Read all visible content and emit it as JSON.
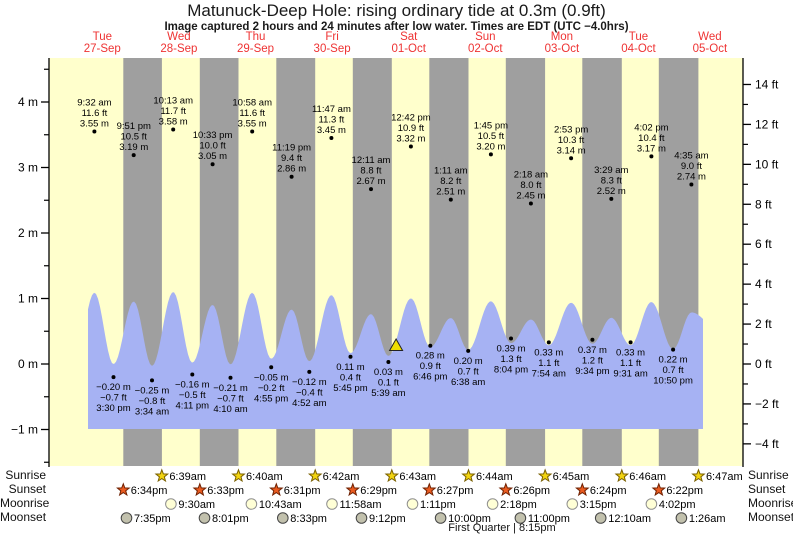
{
  "title": "Matunuck-Deep Hole: rising  ordinary tide at 0.3m (0.9ft)",
  "subtitle": "Image captured 2 hours and 24 minutes after low water. Times are EDT (UTC −4.0hrs)",
  "days": [
    {
      "name": "Tue",
      "date": "27-Sep"
    },
    {
      "name": "Wed",
      "date": "28-Sep"
    },
    {
      "name": "Thu",
      "date": "29-Sep"
    },
    {
      "name": "Fri",
      "date": "30-Sep"
    },
    {
      "name": "Sat",
      "date": "01-Oct"
    },
    {
      "name": "Sun",
      "date": "02-Oct"
    },
    {
      "name": "Mon",
      "date": "03-Oct"
    },
    {
      "name": "Tue",
      "date": "04-Oct"
    },
    {
      "name": "Wed",
      "date": "05-Oct"
    }
  ],
  "chart_data": {
    "type": "area",
    "title": "Matunuck-Deep Hole tide curve",
    "ylabel_left": "m",
    "ylabel_right": "ft",
    "left_ticks_m": [
      4,
      3,
      2,
      1,
      0,
      -1
    ],
    "left_minor_ticks_m": [
      4.5,
      3.5,
      2.5,
      1.5,
      0.5,
      -0.5,
      -1.5
    ],
    "right_ticks_ft": [
      14,
      12,
      10,
      8,
      6,
      4,
      2,
      0,
      -2,
      -4
    ],
    "right_minor_ticks_ft": [
      13,
      11,
      9,
      7,
      5,
      3,
      1,
      -1,
      -3
    ],
    "ylim_m": [
      -1.56,
      4.67
    ],
    "grid": false,
    "highs": [
      {
        "day": 0,
        "time": "9:32 am",
        "ft": 11.6,
        "m": 3.55
      },
      {
        "day": 0,
        "time": "9:51 pm",
        "ft": 10.5,
        "m": 3.19
      },
      {
        "day": 1,
        "time": "10:13 am",
        "ft": 11.7,
        "m": 3.58
      },
      {
        "day": 1,
        "time": "10:33 pm",
        "ft": 10.0,
        "m": 3.05
      },
      {
        "day": 2,
        "time": "10:58 am",
        "ft": 11.6,
        "m": 3.55
      },
      {
        "day": 2,
        "time": "11:19 pm",
        "ft": 9.4,
        "m": 2.86
      },
      {
        "day": 3,
        "time": "11:47 am",
        "ft": 11.3,
        "m": 3.45
      },
      {
        "day": 4,
        "time": "12:11 am",
        "ft": 8.8,
        "m": 2.67
      },
      {
        "day": 4,
        "time": "12:42 pm",
        "ft": 10.9,
        "m": 3.32
      },
      {
        "day": 5,
        "time": "1:11 am",
        "ft": 8.2,
        "m": 2.51
      },
      {
        "day": 5,
        "time": "1:45 pm",
        "ft": 10.5,
        "m": 3.2
      },
      {
        "day": 6,
        "time": "2:18 am",
        "ft": 8.0,
        "m": 2.45
      },
      {
        "day": 6,
        "time": "2:53 pm",
        "ft": 10.3,
        "m": 3.14
      },
      {
        "day": 7,
        "time": "3:29 am",
        "ft": 8.3,
        "m": 2.52
      },
      {
        "day": 7,
        "time": "4:02 pm",
        "ft": 10.4,
        "m": 3.17
      },
      {
        "day": 8,
        "time": "4:35 am",
        "ft": 9.0,
        "m": 2.74
      }
    ],
    "lows": [
      {
        "day": 0,
        "time": "3:30 pm",
        "ft": -0.7,
        "m": -0.2
      },
      {
        "day": 1,
        "time": "3:34 am",
        "ft": -0.8,
        "m": -0.25
      },
      {
        "day": 1,
        "time": "4:11 pm",
        "ft": -0.5,
        "m": -0.16
      },
      {
        "day": 2,
        "time": "4:10 am",
        "ft": -0.7,
        "m": -0.21
      },
      {
        "day": 2,
        "time": "4:55 pm",
        "ft": -0.2,
        "m": -0.05
      },
      {
        "day": 3,
        "time": "4:52 am",
        "ft": -0.4,
        "m": -0.12
      },
      {
        "day": 3,
        "time": "5:45 pm",
        "ft": 0.4,
        "m": 0.11
      },
      {
        "day": 4,
        "time": "5:39 am",
        "ft": 0.1,
        "m": 0.03
      },
      {
        "day": 4,
        "time": "6:46 pm",
        "ft": 0.9,
        "m": 0.28
      },
      {
        "day": 5,
        "time": "6:38 am",
        "ft": 0.7,
        "m": 0.2
      },
      {
        "day": 5,
        "time": "8:04 pm",
        "ft": 1.3,
        "m": 0.39
      },
      {
        "day": 6,
        "time": "7:54 am",
        "ft": 1.1,
        "m": 0.33
      },
      {
        "day": 6,
        "time": "9:34 pm",
        "ft": 1.2,
        "m": 0.37
      },
      {
        "day": 7,
        "time": "9:31 am",
        "ft": 1.1,
        "m": 0.33
      },
      {
        "day": 7,
        "time": "10:50 pm",
        "ft": 0.7,
        "m": 0.22
      }
    ],
    "current_time_marker": {
      "day": 4,
      "time": "8:03 am"
    }
  },
  "astro": {
    "row_labels": [
      "Sunrise",
      "Sunset",
      "Moonrise",
      "Moonset"
    ],
    "sunrise": [
      {
        "day": 1,
        "time": "6:39am"
      },
      {
        "day": 2,
        "time": "6:40am"
      },
      {
        "day": 3,
        "time": "6:42am"
      },
      {
        "day": 4,
        "time": "6:43am"
      },
      {
        "day": 5,
        "time": "6:44am"
      },
      {
        "day": 6,
        "time": "6:45am"
      },
      {
        "day": 7,
        "time": "6:46am"
      },
      {
        "day": 8,
        "time": "6:47am"
      }
    ],
    "sunset": [
      {
        "day": 0,
        "time": "6:34pm"
      },
      {
        "day": 1,
        "time": "6:33pm"
      },
      {
        "day": 2,
        "time": "6:31pm"
      },
      {
        "day": 3,
        "time": "6:29pm"
      },
      {
        "day": 4,
        "time": "6:27pm"
      },
      {
        "day": 5,
        "time": "6:26pm"
      },
      {
        "day": 6,
        "time": "6:24pm"
      },
      {
        "day": 7,
        "time": "6:22pm"
      }
    ],
    "moonrise": [
      {
        "day": 1,
        "time": "9:30am"
      },
      {
        "day": 2,
        "time": "10:43am"
      },
      {
        "day": 3,
        "time": "11:58am"
      },
      {
        "day": 4,
        "time": "1:11pm"
      },
      {
        "day": 5,
        "time": "2:18pm"
      },
      {
        "day": 6,
        "time": "3:15pm"
      },
      {
        "day": 7,
        "time": "4:02pm"
      }
    ],
    "moonset": [
      {
        "day": 0,
        "time": "7:35pm"
      },
      {
        "day": 1,
        "time": "8:01pm"
      },
      {
        "day": 2,
        "time": "8:33pm"
      },
      {
        "day": 3,
        "time": "9:12pm"
      },
      {
        "day": 4,
        "time": "10:00pm"
      },
      {
        "day": 5,
        "time": "11:00pm"
      },
      {
        "day": 7,
        "time": "12:10am"
      },
      {
        "day": 8,
        "time": "1:26am"
      }
    ]
  },
  "footer": {
    "moon_phase": "First Quarter | 8:15pm"
  },
  "colors": {
    "plot_bg": "#ffffcc",
    "night_band": "#9f9f9f",
    "tide_fill": "#a6b2f3",
    "day_label": "#ee3333",
    "annotation": "#000000",
    "axis": "#000000",
    "sunrise_star": "#f2d410",
    "sunrise_star_stroke": "#7a6000",
    "sunset_star": "#ea5b20",
    "sunset_star_stroke": "#6e2000",
    "moonrise_fill": "#ffffd6",
    "moonrise_stroke": "#8f8f8f",
    "moonset_fill": "#c2c1ad",
    "moonset_stroke": "#444444",
    "marker_fill": "#efdf00"
  }
}
